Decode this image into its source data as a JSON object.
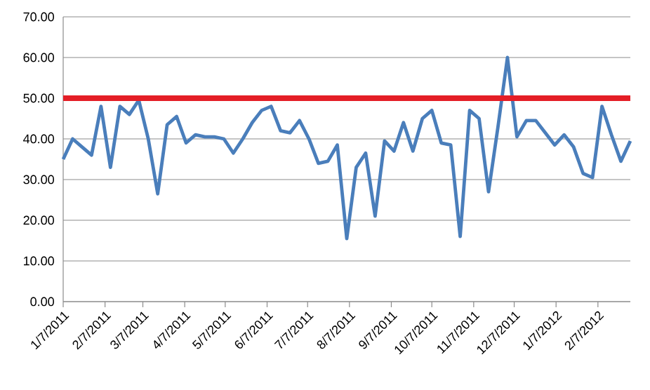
{
  "chart_data": {
    "type": "line",
    "x": [
      "2011-01-07",
      "2011-01-14",
      "2011-01-21",
      "2011-01-28",
      "2011-02-04",
      "2011-02-11",
      "2011-02-18",
      "2011-02-25",
      "2011-03-04",
      "2011-03-11",
      "2011-03-18",
      "2011-03-25",
      "2011-04-01",
      "2011-04-08",
      "2011-04-15",
      "2011-04-22",
      "2011-04-29",
      "2011-05-06",
      "2011-05-13",
      "2011-05-20",
      "2011-05-27",
      "2011-06-03",
      "2011-06-10",
      "2011-06-17",
      "2011-06-24",
      "2011-07-01",
      "2011-07-08",
      "2011-07-15",
      "2011-07-22",
      "2011-07-29",
      "2011-08-05",
      "2011-08-12",
      "2011-08-19",
      "2011-08-26",
      "2011-09-02",
      "2011-09-09",
      "2011-09-16",
      "2011-09-23",
      "2011-09-30",
      "2011-10-07",
      "2011-10-14",
      "2011-10-21",
      "2011-10-28",
      "2011-11-04",
      "2011-11-11",
      "2011-11-18",
      "2011-11-25",
      "2011-12-02",
      "2011-12-09",
      "2011-12-16",
      "2011-12-23",
      "2011-12-30",
      "2012-01-06",
      "2012-01-13",
      "2012-01-20",
      "2012-01-27",
      "2012-02-03",
      "2012-02-10",
      "2012-02-17",
      "2012-02-24",
      "2012-03-02"
    ],
    "series": [
      {
        "color": "#4a7ebb",
        "values": [
          35,
          40,
          38,
          36,
          48,
          33,
          48,
          46,
          49.5,
          40,
          26.5,
          43.5,
          45.5,
          39,
          41,
          40.5,
          40.5,
          40,
          36.5,
          40,
          44,
          47,
          48,
          42,
          41.5,
          44.5,
          40,
          34,
          34.5,
          38.5,
          15.5,
          33,
          36.5,
          21,
          39.5,
          37,
          44,
          37,
          45,
          47,
          39,
          38.5,
          16,
          47,
          45,
          27,
          43,
          60,
          40.5,
          44.5,
          44.5,
          41.5,
          38.5,
          41,
          38,
          31.5,
          30.5,
          48,
          41,
          34.5,
          39.5
        ]
      }
    ],
    "xlim": [
      "2011-01-07",
      "2012-03-02"
    ],
    "xticks": [
      {
        "value": "2011-01-07",
        "label": "1/7/2011"
      },
      {
        "value": "2011-02-07",
        "label": "2/7/2011"
      },
      {
        "value": "2011-03-07",
        "label": "3/7/2011"
      },
      {
        "value": "2011-04-07",
        "label": "4/7/2011"
      },
      {
        "value": "2011-05-07",
        "label": "5/7/2011"
      },
      {
        "value": "2011-06-07",
        "label": "6/7/2011"
      },
      {
        "value": "2011-07-07",
        "label": "7/7/2011"
      },
      {
        "value": "2011-08-07",
        "label": "8/7/2011"
      },
      {
        "value": "2011-09-07",
        "label": "9/7/2011"
      },
      {
        "value": "2011-10-07",
        "label": "10/7/2011"
      },
      {
        "value": "2011-11-07",
        "label": "11/7/2011"
      },
      {
        "value": "2011-12-07",
        "label": "12/7/2011"
      },
      {
        "value": "2012-01-07",
        "label": "1/7/2012"
      },
      {
        "value": "2012-02-07",
        "label": "2/7/2012"
      }
    ],
    "ylim": [
      0,
      70
    ],
    "yticks": [
      {
        "value": 0,
        "label": "0.00"
      },
      {
        "value": 10,
        "label": "10.00"
      },
      {
        "value": 20,
        "label": "20.00"
      },
      {
        "value": 30,
        "label": "30.00"
      },
      {
        "value": 40,
        "label": "40.00"
      },
      {
        "value": 50,
        "label": "50.00"
      },
      {
        "value": 60,
        "label": "60.00"
      },
      {
        "value": 70,
        "label": "70.00"
      }
    ],
    "grid": "y",
    "marker": "none",
    "line_style": "solid",
    "ref_lines": [
      {
        "axis": "y",
        "value": 50,
        "color": "#e41e26"
      }
    ]
  }
}
